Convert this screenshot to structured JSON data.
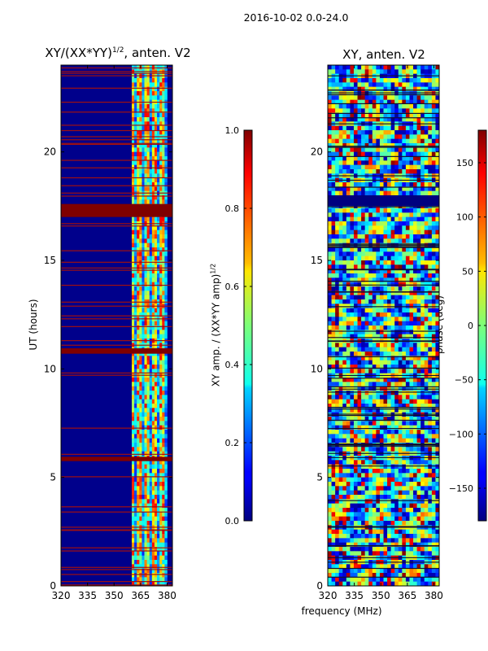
{
  "suptitle": "2016-10-02 0.0-24.0",
  "chart_data": [
    {
      "type": "heatmap",
      "id": "amp",
      "title_prefix": "XY/(XX*YY)",
      "title_exp": "1/2",
      "title_suffix": ", anten. V2",
      "ylabel": "UT (hours)",
      "xlabel": "",
      "xlim": [
        320,
        383
      ],
      "ylim": [
        0,
        24
      ],
      "xticks": [
        320,
        335,
        350,
        365,
        380
      ],
      "yticks": [
        0,
        5,
        10,
        15,
        20
      ],
      "colorbar": {
        "label_prefix": "XY amp. / (XX*YY amp)",
        "label_exp": "1/2",
        "range": [
          0.0,
          1.0
        ],
        "ticks": [
          "0.0",
          "0.2",
          "0.4",
          "0.6",
          "0.8",
          "1.0"
        ],
        "tick_values": [
          0.0,
          0.2,
          0.4,
          0.6,
          0.8,
          1.0
        ],
        "colormap": "jet"
      },
      "saturated_bands_hours": [
        [
          17.0,
          17.6
        ],
        [
          10.7,
          10.95
        ],
        [
          5.75,
          5.95
        ]
      ],
      "active_band_mhz": [
        360,
        380
      ]
    },
    {
      "type": "heatmap",
      "id": "phase",
      "title": "XY, anten. V2",
      "ylabel": "",
      "xlabel": "frequency (MHz)",
      "xlim": [
        320,
        383
      ],
      "ylim": [
        0,
        24
      ],
      "xticks": [
        320,
        335,
        350,
        365,
        380
      ],
      "yticks": [
        0,
        5,
        10,
        15,
        20
      ],
      "colorbar": {
        "label": "phase (deg)",
        "range": [
          -180,
          180
        ],
        "ticks": [
          "−150",
          "−100",
          "−50",
          "0",
          "50",
          "100",
          "150"
        ],
        "tick_values": [
          -150,
          -100,
          -50,
          0,
          50,
          100,
          150
        ],
        "colormap": "jet"
      },
      "flagged_band_hours": [
        17.5,
        18.0
      ]
    }
  ],
  "colors": {
    "jet_low": "#00007f",
    "jet_high": "#7f0000"
  }
}
